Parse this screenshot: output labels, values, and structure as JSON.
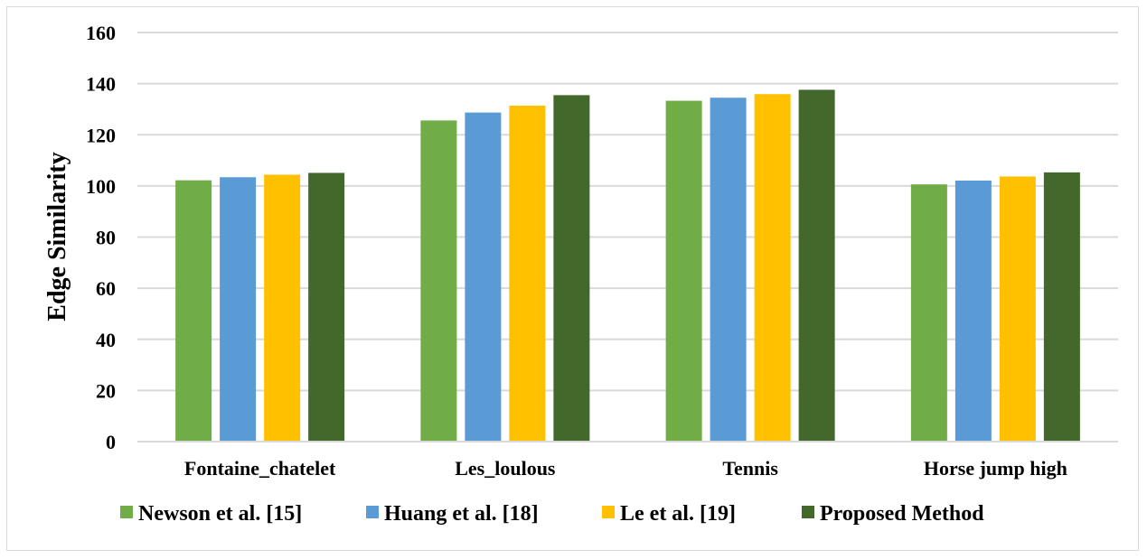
{
  "chart_data": {
    "type": "bar",
    "ylabel": "Edge Similarity",
    "xlabel": "",
    "ylim": [
      0,
      160
    ],
    "yticks": [
      0,
      20,
      40,
      60,
      80,
      100,
      120,
      140,
      160
    ],
    "grid": true,
    "legend_position": "bottom",
    "categories": [
      "Fontaine_chatelet",
      "Les_loulous",
      "Tennis",
      "Horse jump high"
    ],
    "series": [
      {
        "name": "Newson et al. [15]",
        "color": "#70ad47",
        "values": [
          102.2,
          125.6,
          133.3,
          100.6
        ]
      },
      {
        "name": "Huang et al. [18]",
        "color": "#5b9bd5",
        "values": [
          103.4,
          128.7,
          134.5,
          102.1
        ]
      },
      {
        "name": "Le et al.  [19]",
        "color": "#ffc000",
        "values": [
          104.4,
          131.4,
          135.9,
          103.7
        ]
      },
      {
        "name": "Proposed Method",
        "color": "#43682b",
        "values": [
          105.1,
          135.5,
          137.6,
          105.3
        ]
      }
    ]
  }
}
